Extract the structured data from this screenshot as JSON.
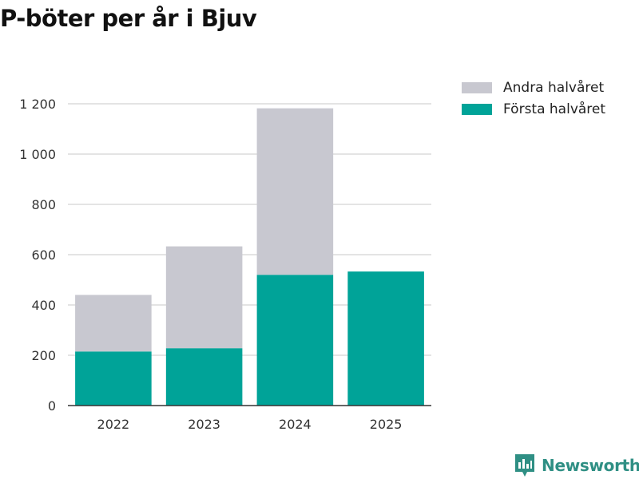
{
  "chart_data": {
    "type": "bar",
    "stacked": true,
    "title": "P-böter per år i Bjuv",
    "categories": [
      "2022",
      "2023",
      "2024",
      "2025"
    ],
    "series": [
      {
        "name": "Första halvåret",
        "color": "#00a398",
        "values": [
          215,
          228,
          520,
          533
        ]
      },
      {
        "name": "Andra halvåret",
        "color": "#c8c8d0",
        "values": [
          225,
          405,
          662,
          0
        ]
      }
    ],
    "yticks": [
      0,
      200,
      400,
      600,
      800,
      1000,
      1200
    ],
    "ytick_labels": [
      "0",
      "200",
      "400",
      "600",
      "800",
      "1 000",
      "1 200"
    ],
    "ylim": [
      0,
      1200
    ],
    "xlabel": "",
    "ylabel": "",
    "legend_position": "top-right",
    "legend": [
      "Andra halvåret",
      "Första halvåret"
    ],
    "grid": true
  },
  "brand": {
    "name": "Newsworthy",
    "color": "#2f8f84"
  }
}
